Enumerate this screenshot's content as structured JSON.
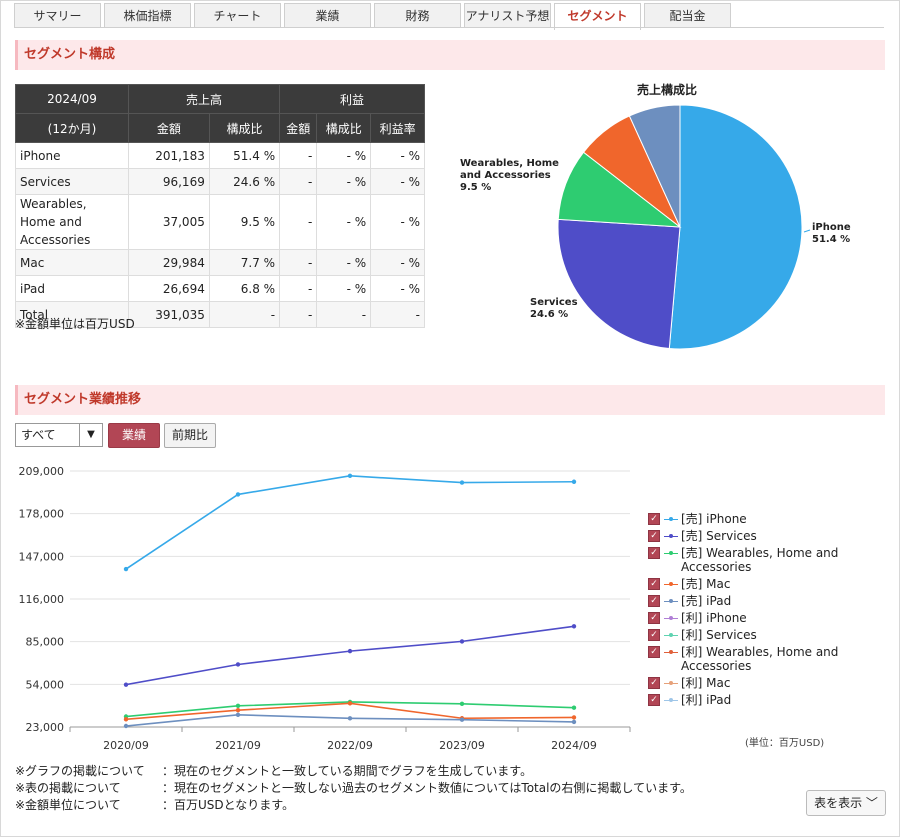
{
  "tabs": [
    "サマリー",
    "株価指標",
    "チャート",
    "業績",
    "財務",
    "アナリスト予想",
    "セグメント",
    "配当金"
  ],
  "active_tab": "セグメント",
  "section1_title": "セグメント構成",
  "table": {
    "period": "2024/09",
    "period_sub": "(12か月)",
    "group_sales": "売上高",
    "group_profit": "利益",
    "cols": [
      "金額",
      "構成比",
      "金額",
      "構成比",
      "利益率"
    ],
    "rows": [
      {
        "name": "iPhone",
        "amount": "201,183",
        "ratio": "51.4 %",
        "p_amount": "-",
        "p_ratio": "- %",
        "margin": "- %"
      },
      {
        "name": "Services",
        "amount": "96,169",
        "ratio": "24.6 %",
        "p_amount": "-",
        "p_ratio": "- %",
        "margin": "- %"
      },
      {
        "name": "Wearables, Home and Accessories",
        "amount": "37,005",
        "ratio": "9.5 %",
        "p_amount": "-",
        "p_ratio": "- %",
        "margin": "- %"
      },
      {
        "name": "Mac",
        "amount": "29,984",
        "ratio": "7.7 %",
        "p_amount": "-",
        "p_ratio": "- %",
        "margin": "- %"
      },
      {
        "name": "iPad",
        "amount": "26,694",
        "ratio": "6.8 %",
        "p_amount": "-",
        "p_ratio": "- %",
        "margin": "- %"
      },
      {
        "name": "Total",
        "amount": "391,035",
        "ratio": "-",
        "p_amount": "-",
        "p_ratio": "-",
        "margin": "-"
      }
    ],
    "note": "※金額単位は百万USD"
  },
  "section2_title": "セグメント業績推移",
  "controls": {
    "select_value": "すべて",
    "btn_primary": "業績",
    "btn_secondary": "前期比"
  },
  "unit_label": "(単位：百万USD)",
  "notes": [
    {
      "k": "※グラフの掲載について",
      "v": "：現在のセグメントと一致している期間でグラフを生成しています。"
    },
    {
      "k": "※表の掲載について",
      "v": "：現在のセグメントと一致しない過去のセグメント数値についてはTotalの右側に掲載しています。"
    },
    {
      "k": "※金額単位について",
      "v": "：百万USDとなります。"
    }
  ],
  "table_toggle": "表を表示",
  "colors": {
    "iphone": "#36a9e9",
    "services": "#4f4dc8",
    "wearables": "#2ecc71",
    "mac": "#f0662c",
    "ipad": "#6d8fbf",
    "accent": "#b24655"
  },
  "legend": [
    {
      "label": "[売] iPhone",
      "color": "#36a9e9"
    },
    {
      "label": "[売] Services",
      "color": "#4f4dc8"
    },
    {
      "label": "[売] Wearables, Home and Accessories",
      "color": "#2ecc71"
    },
    {
      "label": "[売] Mac",
      "color": "#f0662c"
    },
    {
      "label": "[売] iPad",
      "color": "#6d8fbf"
    },
    {
      "label": "[利] iPhone",
      "color": "#b07fd6"
    },
    {
      "label": "[利] Services",
      "color": "#5fd3b1"
    },
    {
      "label": "[利] Wearables, Home and Accessories",
      "color": "#e0603a"
    },
    {
      "label": "[利] Mac",
      "color": "#e6a17a"
    },
    {
      "label": "[利] iPad",
      "color": "#9fc6e8"
    }
  ],
  "chart_data": [
    {
      "type": "pie",
      "title": "売上構成比",
      "slices": [
        {
          "name": "iPhone",
          "value": 51.4,
          "label": "iPhone\n51.4 %",
          "color": "#36a9e9"
        },
        {
          "name": "Services",
          "value": 24.6,
          "label": "Services\n24.6 %",
          "color": "#4f4dc8"
        },
        {
          "name": "Wearables, Home and Accessories",
          "value": 9.5,
          "label": "Wearables, Home\nand Accessories\n\n9.5 %",
          "color": "#2ecc71"
        },
        {
          "name": "Mac",
          "value": 7.7,
          "label": "",
          "color": "#f0662c"
        },
        {
          "name": "iPad",
          "value": 6.8,
          "label": "",
          "color": "#6d8fbf"
        }
      ]
    },
    {
      "type": "line",
      "categories": [
        "2020/09",
        "2021/09",
        "2022/09",
        "2023/09",
        "2024/09"
      ],
      "ylim": [
        23000,
        209000
      ],
      "yticks": [
        "23,000",
        "54,000",
        "85,000",
        "116,000",
        "147,000",
        "178,000",
        "209,000"
      ],
      "ytick_values": [
        23000,
        54000,
        85000,
        116000,
        147000,
        178000,
        209000
      ],
      "series": [
        {
          "name": "[売] iPhone",
          "color": "#36a9e9",
          "values": [
            137781,
            191973,
            205489,
            200583,
            201183
          ]
        },
        {
          "name": "[売] Services",
          "color": "#4f4dc8",
          "values": [
            53768,
            68425,
            78129,
            85200,
            96169
          ]
        },
        {
          "name": "[売] Wearables, Home and Accessories",
          "color": "#2ecc71",
          "values": [
            30620,
            38367,
            41241,
            39845,
            37005
          ]
        },
        {
          "name": "[売] Mac",
          "color": "#f0662c",
          "values": [
            28622,
            35190,
            40177,
            29357,
            29984
          ]
        },
        {
          "name": "[売] iPad",
          "color": "#6d8fbf",
          "values": [
            23724,
            31862,
            29292,
            28300,
            26694
          ]
        }
      ]
    }
  ]
}
